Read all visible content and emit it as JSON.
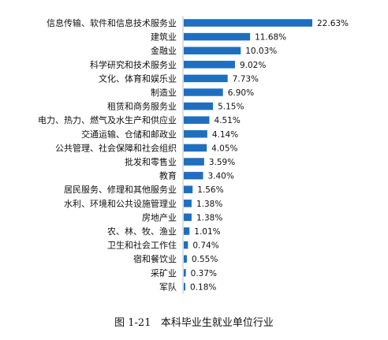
{
  "chart_data": {
    "type": "bar",
    "orientation": "horizontal",
    "categories": [
      "信息传输、软件和信息技术服务业",
      "建筑业",
      "金融业",
      "科学研究和技术服务业",
      "文化、体育和娱乐业",
      "制造业",
      "租赁和商务服务业",
      "电力、热力、燃气及水生产和供应业",
      "交通运输、仓储和邮政业",
      "公共管理、社会保障和社会组织",
      "批发和零售业",
      "教育",
      "居民服务、修理和其他服务业",
      "水利、环境和公共设施管理业",
      "房地产业",
      "农、林、牧、渔业",
      "卫生和社会工作住",
      "宿和餐饮业",
      "采矿业",
      "军队"
    ],
    "values": [
      22.63,
      11.68,
      10.03,
      9.02,
      7.73,
      6.9,
      5.15,
      4.51,
      4.14,
      4.05,
      3.59,
      3.4,
      1.56,
      1.38,
      1.38,
      1.01,
      0.74,
      0.55,
      0.37,
      0.18
    ],
    "value_labels": [
      "22.63%",
      "11.68%",
      "10.03%",
      "9.02%",
      "7.73%",
      "6.90%",
      "5.15%",
      "4.51%",
      "4.14%",
      "4.05%",
      "3.59%",
      "3.40%",
      "1.56%",
      "1.38%",
      "1.38%",
      "1.01%",
      "0.74%",
      "0.55%",
      "0.37%",
      "0.18%"
    ],
    "bar_color": "#1f6fc0",
    "axis_color": "#bfbfbf",
    "grid": false,
    "legend": "none"
  },
  "caption": "图 1-21   本科毕业生就业单位行业"
}
